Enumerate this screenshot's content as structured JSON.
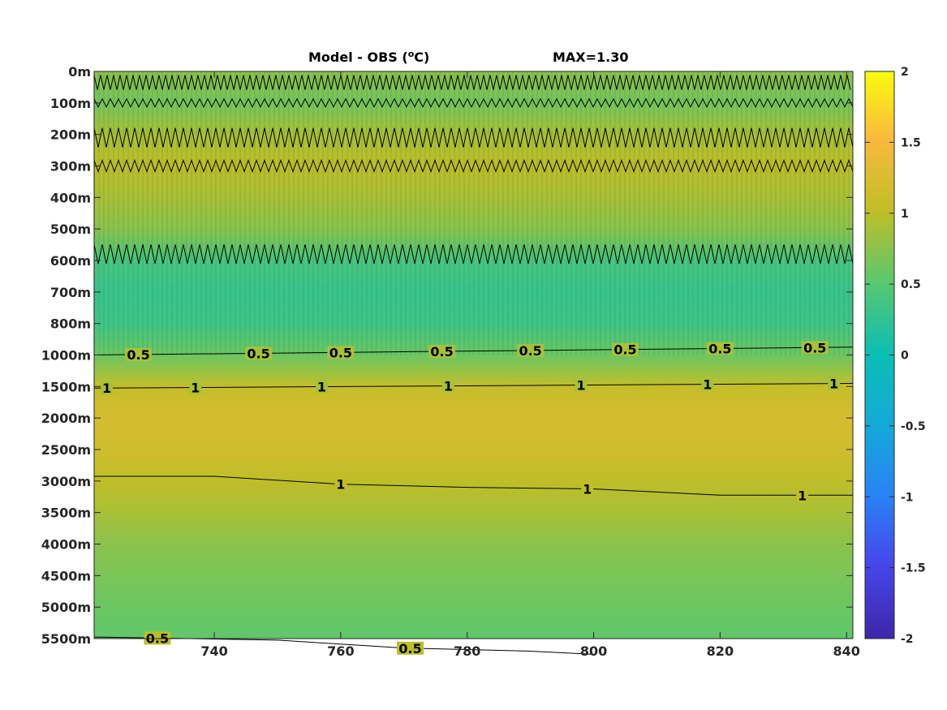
{
  "chart_data": {
    "type": "heatmap",
    "title": "Model - OBS (",
    "title_unit_sup": "o",
    "title_unit_tail": "C)",
    "max_label": "MAX=1.30",
    "xlim": [
      721,
      841
    ],
    "x_ticks": [
      740,
      760,
      780,
      800,
      820,
      840
    ],
    "x_tick_labels": [
      "740",
      "760",
      "780",
      "800",
      "820",
      "840"
    ],
    "y_tick_labels": [
      "0m",
      "100m",
      "200m",
      "300m",
      "400m",
      "500m",
      "600m",
      "700m",
      "800m",
      "1000m",
      "1500m",
      "2000m",
      "2500m",
      "3000m",
      "3500m",
      "4000m",
      "4500m",
      "5000m",
      "5500m"
    ],
    "colorbar": {
      "colormap": "parula",
      "range": [
        -2,
        2
      ],
      "ticks": [
        2,
        1.5,
        1,
        0.5,
        0,
        -0.5,
        -1,
        -1.5,
        -2
      ],
      "tick_labels": [
        "2",
        "1.5",
        "1",
        "0.5",
        "0",
        "-0.5",
        "-1",
        "-1.5",
        "-2"
      ]
    },
    "depth_profile": [
      {
        "level": 0,
        "value": 0.75
      },
      {
        "level": 1,
        "value": 0.65
      },
      {
        "level": 2,
        "value": 0.9
      },
      {
        "level": 3,
        "value": 1.0
      },
      {
        "level": 4,
        "value": 0.9
      },
      {
        "level": 5,
        "value": 0.75
      },
      {
        "level": 6,
        "value": 0.4
      },
      {
        "level": 7,
        "value": 0.3
      },
      {
        "level": 8,
        "value": 0.35
      },
      {
        "level": 9,
        "value": 0.6
      },
      {
        "level": 10,
        "value": 1.05
      },
      {
        "level": 11,
        "value": 1.2
      },
      {
        "level": 12,
        "value": 1.15
      },
      {
        "level": 13,
        "value": 1.0
      },
      {
        "level": 14,
        "value": 0.9
      },
      {
        "level": 15,
        "value": 0.75
      },
      {
        "level": 16,
        "value": 0.68
      },
      {
        "level": 17,
        "value": 0.6
      },
      {
        "level": 18,
        "value": 0.55
      }
    ],
    "contours": [
      {
        "label": "0.5",
        "points": [
          [
            721,
            9.0
          ],
          [
            841,
            8.75
          ]
        ],
        "label_x": [
          728,
          747,
          760,
          776,
          790,
          805,
          820,
          835
        ]
      },
      {
        "label": "1",
        "points": [
          [
            721,
            10.05
          ],
          [
            841,
            9.9
          ]
        ],
        "label_x": [
          723,
          737,
          757,
          777,
          798,
          818,
          838
        ]
      },
      {
        "label": "1",
        "points": [
          [
            721,
            12.85
          ],
          [
            740,
            12.85
          ],
          [
            760,
            13.1
          ],
          [
            780,
            13.2
          ],
          [
            800,
            13.25
          ],
          [
            820,
            13.45
          ],
          [
            841,
            13.45
          ]
        ],
        "label_x": [
          760,
          799,
          833
        ]
      },
      {
        "label": "0.5",
        "points": [
          [
            721,
            17.95
          ],
          [
            750,
            18.05
          ],
          [
            770,
            18.3
          ],
          [
            790,
            18.4
          ],
          [
            800,
            18.5
          ]
        ],
        "label_x": [
          731,
          771
        ]
      }
    ]
  }
}
